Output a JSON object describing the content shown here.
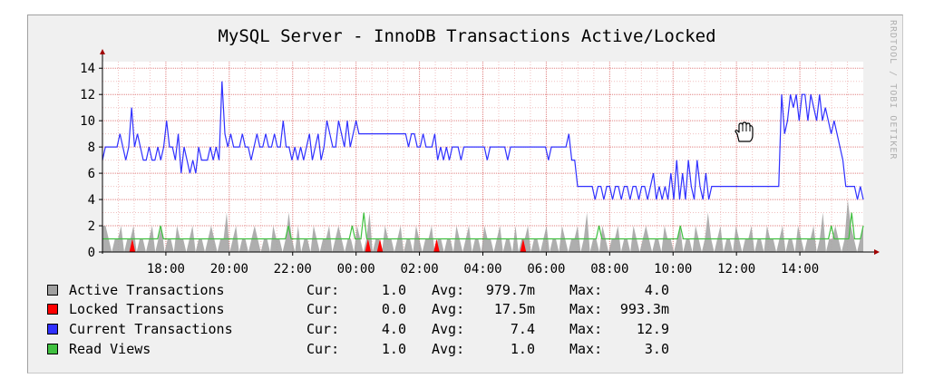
{
  "chart_data": {
    "type": "area",
    "title": "MySQL Server - InnoDB Transactions Active/Locked",
    "watermark": "RRDTOOL / TOBI OETIKER",
    "y_ticks": [
      "0",
      "2",
      "4",
      "6",
      "8",
      "10",
      "12",
      "14"
    ],
    "x_ticks": [
      "18:00",
      "20:00",
      "22:00",
      "00:00",
      "02:00",
      "04:00",
      "06:00",
      "08:00",
      "10:00",
      "12:00",
      "14:00"
    ],
    "ylim": [
      0,
      14.5
    ],
    "grid": true,
    "x_start_hour": 16.0,
    "x_end_hour": 40.0,
    "series": [
      {
        "name": "Active Transactions",
        "color": "#a0a0a0",
        "style": "area",
        "cur": "1.0",
        "avg": "979.7m",
        "max": "4.0",
        "values": [
          2,
          2,
          1,
          0,
          1,
          1,
          2,
          0,
          1,
          1,
          2,
          0,
          1,
          1,
          0,
          1,
          2,
          0,
          1,
          2,
          0,
          1,
          1,
          0,
          2,
          1,
          1,
          0,
          1,
          2,
          0,
          1,
          1,
          0,
          1,
          2,
          1,
          0,
          1,
          1,
          3,
          0,
          1,
          2,
          0,
          1,
          1,
          0,
          1,
          2,
          1,
          0,
          1,
          1,
          0,
          2,
          1,
          1,
          0,
          1,
          3,
          1,
          0,
          2,
          0,
          1,
          1,
          0,
          2,
          1,
          0,
          1,
          1,
          2,
          0,
          1,
          2,
          1,
          0,
          1,
          1,
          0,
          2,
          1,
          0,
          1,
          3,
          0,
          1,
          1,
          0,
          2,
          1,
          1,
          0,
          1,
          2,
          0,
          1,
          1,
          0,
          2,
          1,
          0,
          1,
          1,
          2,
          0,
          1,
          1,
          0,
          1,
          1,
          0,
          2,
          1,
          0,
          1,
          2,
          0,
          1,
          1,
          0,
          2,
          1,
          1,
          0,
          1,
          2,
          0,
          1,
          1,
          0,
          2,
          0,
          1,
          1,
          2,
          0,
          1,
          1,
          0,
          1,
          2,
          0,
          1,
          1,
          0,
          2,
          1,
          0,
          1,
          1,
          2,
          0,
          1,
          3,
          0,
          1,
          1,
          0,
          2,
          1,
          0,
          1,
          1,
          2,
          0,
          1,
          1,
          0,
          2,
          1,
          0,
          1,
          2,
          1,
          0,
          1,
          1,
          0,
          2,
          1,
          1,
          0,
          1,
          2,
          0,
          1,
          1,
          0,
          2,
          1,
          0,
          1,
          3,
          1,
          0,
          1,
          2,
          0,
          1,
          1,
          0,
          2,
          1,
          0,
          1,
          1,
          2,
          0,
          1,
          1,
          0,
          2,
          1,
          1,
          0,
          1,
          2,
          0,
          1,
          1,
          0,
          2,
          1,
          0,
          1,
          1,
          2,
          0,
          1,
          3,
          0,
          1,
          1,
          2,
          1,
          0,
          1,
          4,
          2,
          1,
          0,
          1,
          2
        ]
      },
      {
        "name": "Locked Transactions",
        "color": "#ff0000",
        "style": "area",
        "cur": "0.0",
        "avg": "17.5m",
        "max": "993.3m",
        "values": [
          0,
          0,
          0,
          0,
          0,
          0,
          0,
          0,
          0,
          0,
          1,
          0,
          0,
          0,
          0,
          0,
          0,
          0,
          0,
          0,
          0,
          0,
          0,
          0,
          0,
          0,
          0,
          0,
          0,
          0,
          0,
          0,
          0,
          0,
          0,
          0,
          0,
          0,
          0,
          0,
          0,
          0,
          0,
          0,
          0,
          0,
          0,
          0,
          0,
          0,
          0,
          0,
          0,
          0,
          0,
          0,
          0,
          0,
          0,
          0,
          0,
          0,
          0,
          0,
          0,
          0,
          0,
          0,
          0,
          0,
          0,
          0,
          0,
          0,
          0,
          0,
          0,
          0,
          0,
          0,
          0,
          0,
          0,
          0,
          0,
          0,
          0,
          0,
          0,
          1,
          0,
          0,
          0,
          1,
          0,
          0,
          0,
          0,
          0,
          0,
          0,
          0,
          0,
          0,
          0,
          0,
          0,
          0,
          0,
          0,
          0,
          0,
          1,
          0,
          0,
          0,
          0,
          0,
          0,
          0,
          0,
          0,
          0,
          0,
          0,
          0,
          0,
          0,
          0,
          0,
          0,
          0,
          0,
          0,
          0,
          0,
          0,
          0,
          0,
          0,
          0,
          1,
          0,
          0,
          0,
          0,
          0,
          0,
          0,
          0,
          0,
          0,
          0,
          0,
          0,
          0,
          0,
          0,
          0,
          0,
          0,
          0,
          0,
          0,
          0,
          0,
          0,
          0,
          0,
          0,
          0,
          0,
          0,
          0,
          0,
          0,
          0,
          0,
          0,
          0,
          0,
          0,
          0,
          0,
          0,
          0,
          0,
          0,
          0,
          0,
          0,
          0,
          0,
          0,
          0,
          0,
          0,
          0,
          0,
          0,
          0,
          0,
          0,
          0,
          0,
          0,
          0,
          0,
          0,
          0,
          0,
          0,
          0,
          0,
          0,
          0,
          0,
          0,
          0,
          0,
          0,
          0,
          0,
          0,
          0,
          0,
          0,
          0,
          0,
          0,
          0,
          0,
          0,
          0,
          0,
          0,
          0,
          0,
          0,
          0,
          0,
          0,
          0,
          0,
          0,
          0,
          0,
          0,
          0,
          0,
          0,
          0,
          0,
          0,
          0,
          0
        ]
      },
      {
        "name": "Current Transactions",
        "color": "#3030ff",
        "style": "line",
        "cur": "4.0",
        "avg": "7.4",
        "max": "12.9",
        "values": [
          7,
          8,
          8,
          8,
          8,
          8,
          9,
          8,
          7,
          8,
          11,
          8,
          9,
          8,
          7,
          7,
          8,
          7,
          7,
          8,
          7,
          8,
          10,
          8,
          8,
          7,
          9,
          6,
          8,
          7,
          6,
          7,
          6,
          8,
          7,
          7,
          7,
          8,
          7,
          8,
          7,
          13,
          9,
          8,
          9,
          8,
          8,
          8,
          9,
          8,
          8,
          7,
          8,
          9,
          8,
          8,
          9,
          8,
          8,
          9,
          8,
          8,
          10,
          8,
          8,
          7,
          8,
          7,
          8,
          7,
          8,
          9,
          7,
          8,
          9,
          7,
          8,
          10,
          9,
          8,
          8,
          10,
          9,
          8,
          10,
          8,
          9,
          10,
          9,
          9,
          9,
          9,
          9,
          9,
          9,
          9,
          9,
          9,
          9,
          9,
          9,
          9,
          9,
          9,
          9,
          8,
          9,
          9,
          8,
          8,
          9,
          8,
          8,
          8,
          9,
          7,
          8,
          7,
          8,
          7,
          8,
          8,
          8,
          7,
          8,
          8,
          8,
          8,
          8,
          8,
          8,
          8,
          7,
          8,
          8,
          8,
          8,
          8,
          8,
          7,
          8,
          8,
          8,
          8,
          8,
          8,
          8,
          8,
          8,
          8,
          8,
          8,
          8,
          7,
          8,
          8,
          8,
          8,
          8,
          8,
          9,
          7,
          7,
          5,
          5,
          5,
          5,
          5,
          5,
          4,
          5,
          5,
          4,
          5,
          5,
          4,
          5,
          5,
          4,
          5,
          5,
          4,
          5,
          5,
          4,
          5,
          5,
          4,
          5,
          6,
          4,
          5,
          4,
          5,
          4,
          6,
          4,
          7,
          4,
          6,
          4,
          7,
          5,
          4,
          7,
          5,
          4,
          6,
          4,
          5,
          5,
          5,
          5,
          5,
          5,
          5,
          5,
          5,
          5,
          5,
          5,
          5,
          5,
          5,
          5,
          5,
          5,
          5,
          5,
          5,
          5,
          5,
          5,
          12,
          9,
          10,
          12,
          11,
          12,
          10,
          12,
          12,
          10,
          12,
          11,
          10,
          12,
          10,
          11,
          10,
          9,
          10,
          9,
          8,
          7,
          5,
          5,
          5,
          5,
          4,
          5,
          4
        ]
      },
      {
        "name": "Read Views",
        "color": "#40c040",
        "style": "line",
        "cur": "1.0",
        "avg": "1.0",
        "max": "3.0",
        "values": [
          1,
          1,
          1,
          1,
          1,
          1,
          1,
          1,
          1,
          1,
          1,
          1,
          1,
          1,
          1,
          1,
          1,
          1,
          1,
          1,
          2,
          1,
          1,
          1,
          1,
          1,
          1,
          1,
          1,
          1,
          1,
          1,
          1,
          1,
          1,
          1,
          1,
          1,
          1,
          1,
          1,
          1,
          1,
          1,
          1,
          1,
          1,
          1,
          1,
          1,
          1,
          1,
          1,
          1,
          1,
          1,
          1,
          1,
          1,
          1,
          1,
          1,
          1,
          1,
          2,
          1,
          1,
          1,
          1,
          1,
          1,
          1,
          1,
          1,
          1,
          1,
          1,
          1,
          1,
          1,
          1,
          1,
          1,
          1,
          1,
          1,
          2,
          1,
          1,
          1,
          3,
          1,
          1,
          1,
          1,
          1,
          1,
          1,
          1,
          1,
          1,
          1,
          1,
          1,
          1,
          1,
          1,
          1,
          1,
          1,
          1,
          1,
          1,
          1,
          1,
          1,
          1,
          1,
          1,
          1,
          1,
          1,
          1,
          1,
          1,
          1,
          1,
          1,
          1,
          1,
          1,
          1,
          1,
          1,
          1,
          1,
          1,
          1,
          1,
          1,
          1,
          1,
          1,
          1,
          1,
          1,
          1,
          1,
          1,
          1,
          1,
          1,
          1,
          1,
          1,
          1,
          1,
          1,
          1,
          1,
          1,
          1,
          1,
          1,
          1,
          1,
          1,
          1,
          1,
          1,
          1,
          2,
          1,
          1,
          1,
          1,
          1,
          1,
          1,
          1,
          1,
          1,
          1,
          1,
          1,
          1,
          1,
          1,
          1,
          1,
          1,
          1,
          1,
          1,
          1,
          1,
          1,
          1,
          1,
          2,
          1,
          1,
          1,
          1,
          1,
          1,
          1,
          1,
          1,
          1,
          1,
          1,
          1,
          1,
          1,
          1,
          1,
          1,
          1,
          1,
          1,
          1,
          1,
          1,
          1,
          1,
          1,
          1,
          1,
          1,
          1,
          1,
          1,
          1,
          1,
          1,
          1,
          1,
          1,
          1,
          1,
          1,
          1,
          1,
          1,
          1,
          1,
          1,
          1,
          1,
          1,
          2,
          1,
          1,
          1,
          1,
          1,
          1,
          3,
          1,
          1,
          1,
          2
        ]
      }
    ],
    "legend_labels": {
      "cur": "Cur:",
      "avg": "Avg:",
      "max": "Max:"
    }
  },
  "colors": {
    "frame_bg": "#f0f0f0",
    "plot_bg": "#ffffff",
    "grid_major": "#e08080",
    "grid_minor": "#f0c0c0",
    "axis": "#000000",
    "arrow": "#a00000"
  },
  "icons": {
    "cursor": "hand-cursor-icon"
  }
}
